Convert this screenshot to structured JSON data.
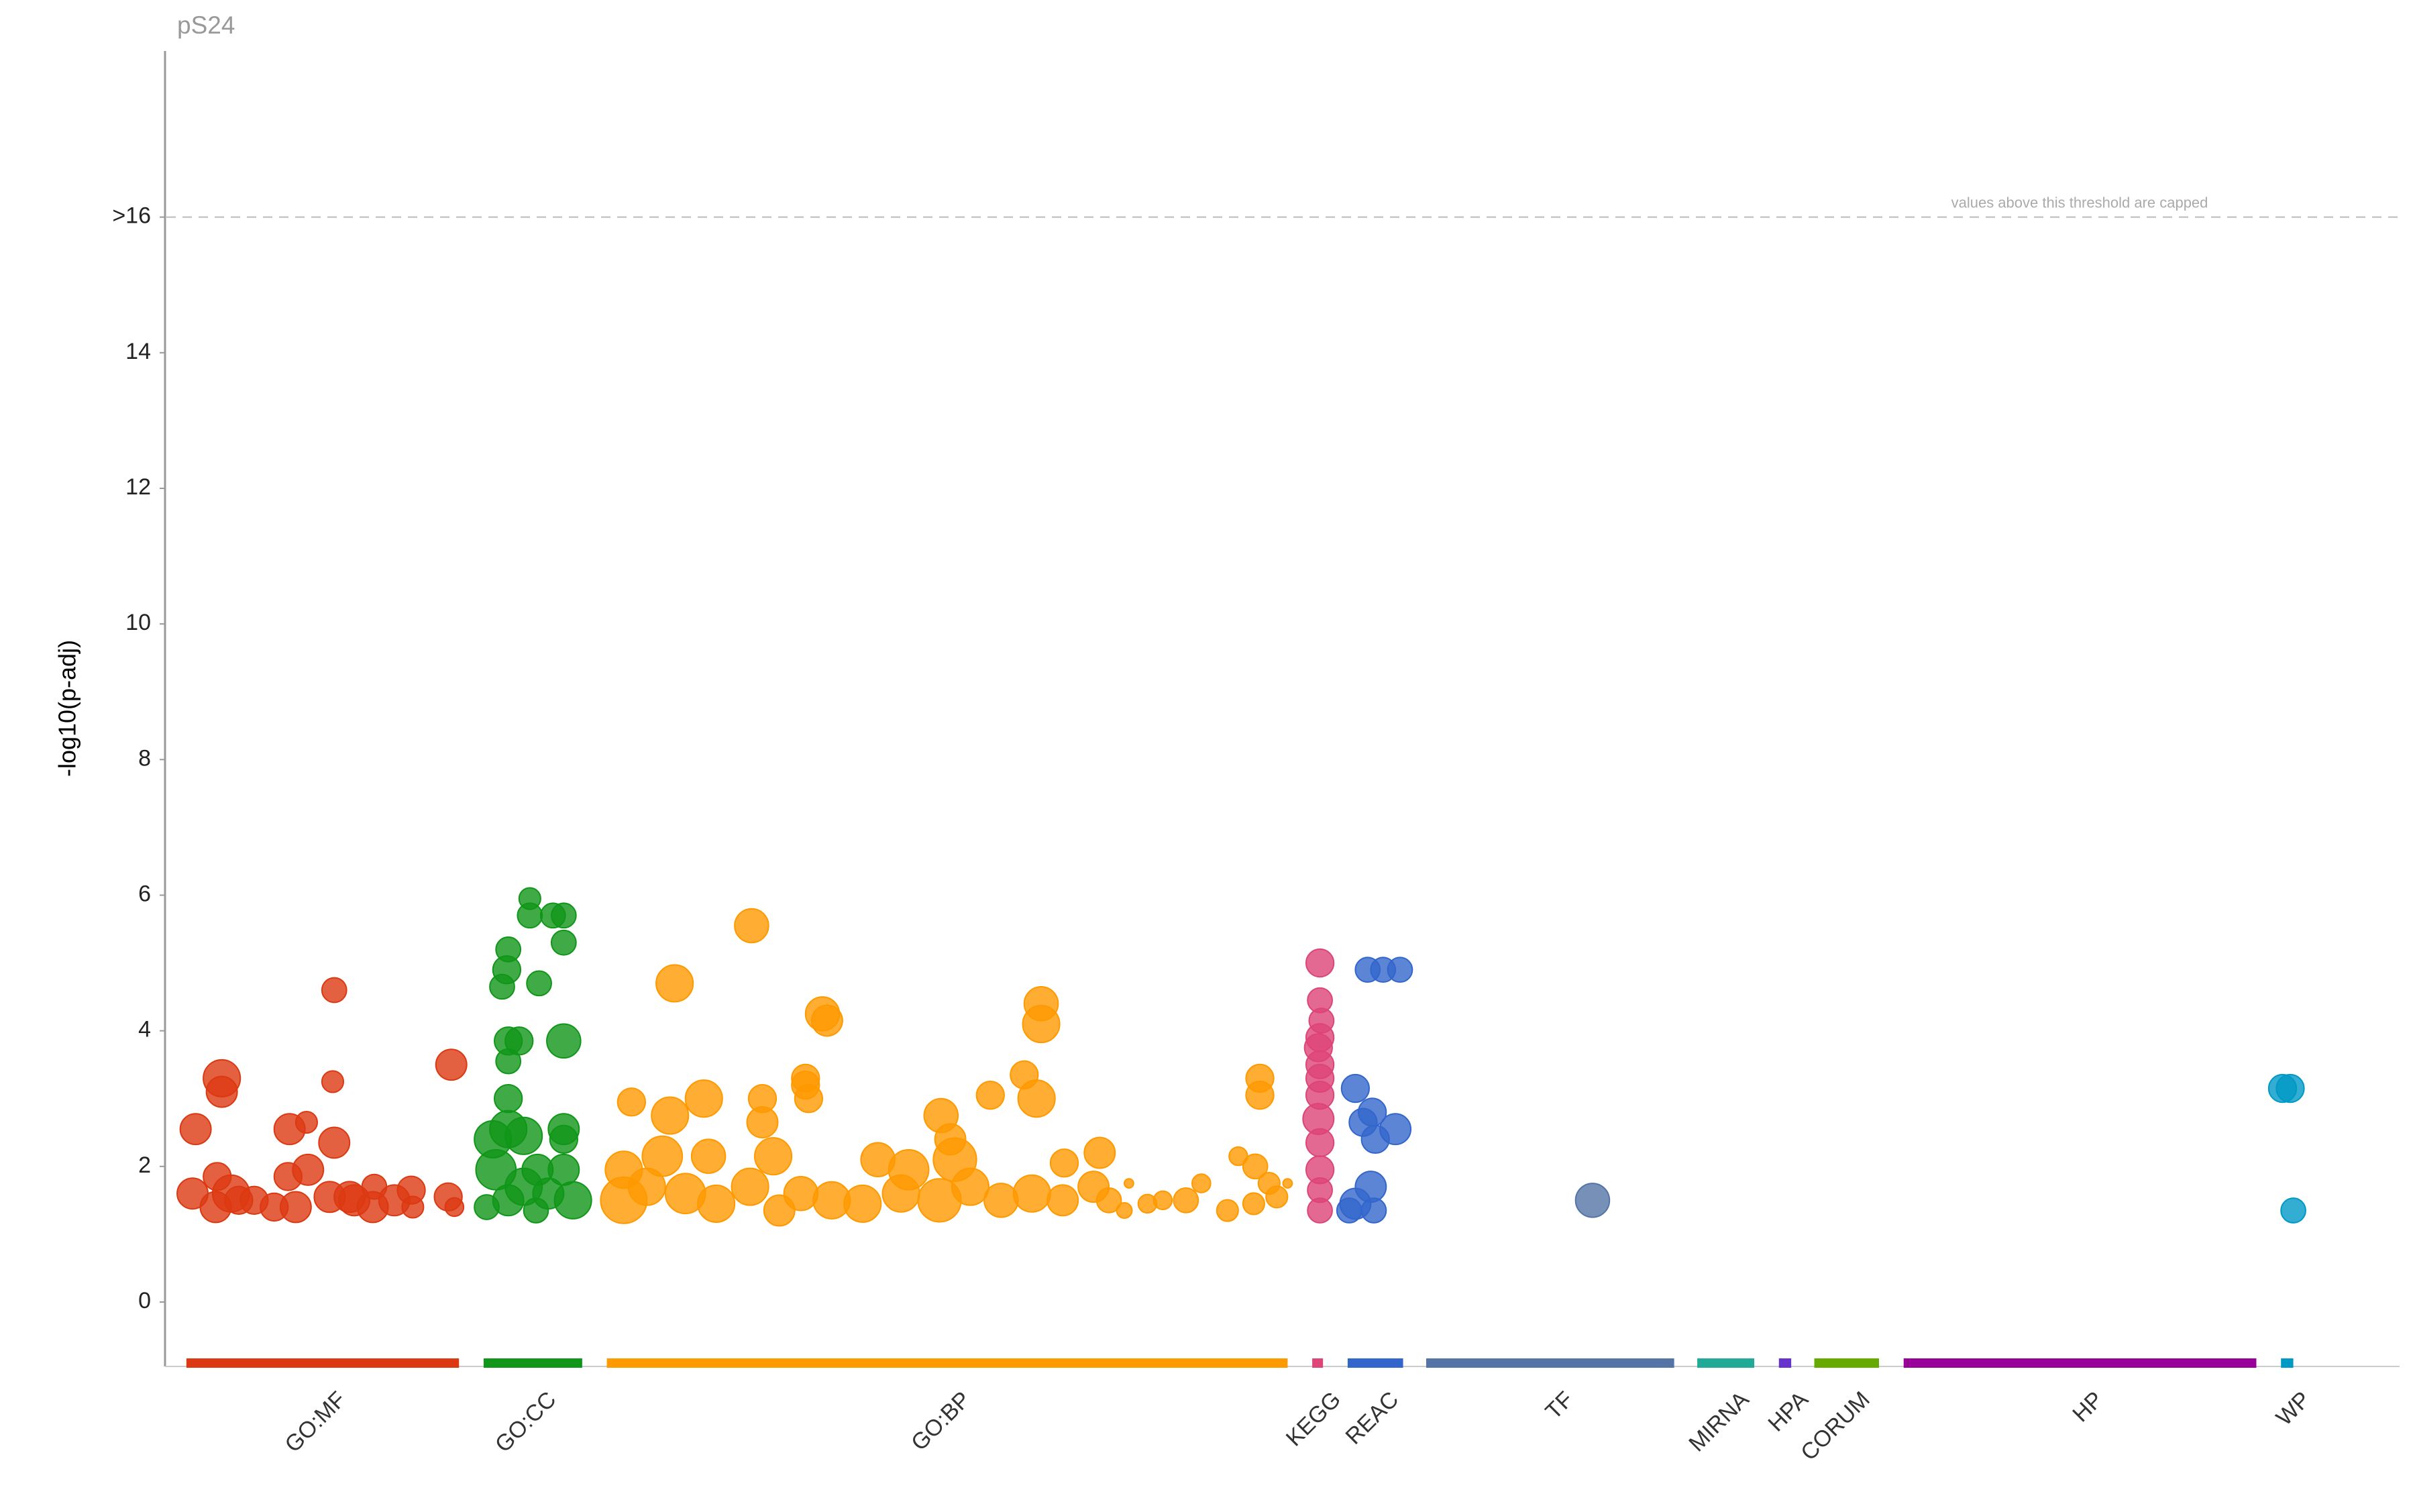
{
  "chart_data": {
    "type": "scatter",
    "title": "pS24",
    "y_label": "-log10(p-adj)",
    "annotation": "values above this threshold are capped",
    "threshold": 16,
    "xlim": [
      0,
      1450
    ],
    "ylim": [
      -0.95,
      18.45
    ],
    "yticks": [
      0,
      2,
      4,
      6,
      8,
      10,
      12,
      14,
      {
        "value": 16,
        "label": ">16"
      }
    ],
    "series": [
      {
        "name": "GO:MF",
        "color": "#dc3912",
        "start": 13,
        "end": 190,
        "x": [
          19,
          36,
          36,
          17,
          33,
          42,
          32,
          57,
          70,
          80,
          91,
          92,
          79,
          84,
          109,
          108,
          109,
          106,
          119,
          134,
          135,
          148,
          159,
          160,
          185,
          183,
          187,
          47,
          122
        ],
        "values": [
          2.55,
          3.3,
          3.1,
          1.6,
          1.85,
          1.6,
          1.4,
          1.5,
          1.4,
          2.55,
          2.65,
          1.95,
          1.85,
          1.4,
          4.6,
          3.25,
          2.35,
          1.55,
          1.55,
          1.4,
          1.7,
          1.5,
          1.65,
          1.4,
          3.5,
          1.55,
          1.4,
          1.5,
          1.5
        ],
        "sizes": [
          10,
          12,
          10,
          10,
          9,
          12,
          10,
          9,
          9,
          10,
          7,
          10,
          9,
          10,
          8,
          7,
          10,
          10,
          10,
          10,
          8,
          10,
          9,
          7,
          10,
          9,
          6,
          9,
          10
        ]
      },
      {
        "name": "GO:CC",
        "color": "#109618",
        "start": 206,
        "end": 270,
        "x": [
          236,
          236,
          251,
          258,
          222,
          258,
          221,
          218,
          242,
          222,
          229,
          258,
          222,
          222,
          222,
          212,
          214,
          232,
          258,
          258,
          241,
          258,
          208,
          222,
          240,
          264,
          232,
          248
        ],
        "values": [
          5.95,
          5.7,
          5.7,
          5.7,
          5.2,
          5.3,
          4.9,
          4.65,
          4.7,
          3.85,
          3.85,
          3.85,
          3.55,
          3.0,
          2.55,
          2.4,
          1.95,
          2.45,
          2.55,
          2.4,
          1.95,
          1.95,
          1.4,
          1.5,
          1.35,
          1.5,
          1.7,
          1.6
        ],
        "sizes": [
          7,
          8,
          8,
          8,
          8,
          8,
          9,
          8,
          8,
          9,
          9,
          11,
          8,
          9,
          12,
          12,
          13,
          12,
          10,
          9,
          10,
          10,
          8,
          10,
          8,
          12,
          12,
          10
        ]
      },
      {
        "name": "GO:BP",
        "color": "#ff9900",
        "start": 286,
        "end": 728,
        "x": [
          380,
          330,
          426,
          429,
          568,
          568,
          349,
          302,
          327,
          415,
          415,
          387,
          417,
          387,
          557,
          535,
          565,
          503,
          509,
          606,
          583,
          297,
          322,
          352,
          394,
          462,
          512,
          482,
          297,
          312,
          337,
          357,
          379,
          398,
          412,
          432,
          452,
          477,
          502,
          522,
          542,
          562,
          582,
          602,
          612,
          625,
          647,
          662,
          672,
          689,
          696,
          707,
          716,
          721,
          710,
          710,
          706,
          728,
          637,
          622
        ],
        "values": [
          5.55,
          4.7,
          4.25,
          4.15,
          4.4,
          4.1,
          3.0,
          2.95,
          2.75,
          3.3,
          3.2,
          3.0,
          3.0,
          2.65,
          3.35,
          3.05,
          3.0,
          2.75,
          2.4,
          2.2,
          2.05,
          1.95,
          2.15,
          2.15,
          2.15,
          2.1,
          2.1,
          1.95,
          1.5,
          1.7,
          1.6,
          1.45,
          1.7,
          1.35,
          1.6,
          1.5,
          1.45,
          1.6,
          1.5,
          1.7,
          1.5,
          1.6,
          1.5,
          1.7,
          1.5,
          1.75,
          1.5,
          1.5,
          1.75,
          1.35,
          2.15,
          2.0,
          1.75,
          1.55,
          3.05,
          3.3,
          1.45,
          1.75,
          1.45,
          1.35
        ],
        "sizes": [
          11,
          12,
          11,
          10,
          11,
          12,
          12,
          9,
          12,
          9,
          9,
          9,
          9,
          10,
          9,
          9,
          12,
          11,
          10,
          10,
          9,
          12,
          13,
          11,
          12,
          11,
          14,
          13,
          15,
          12,
          13,
          12,
          12,
          10,
          11,
          12,
          12,
          12,
          14,
          12,
          11,
          12,
          10,
          10,
          8,
          3,
          6,
          8,
          6,
          7,
          6,
          8,
          7,
          7,
          9,
          9,
          7,
          3,
          6,
          5
        ]
      },
      {
        "name": "KEGG",
        "color": "#dd4477",
        "start": 744,
        "end": 751,
        "x": [
          749,
          749,
          750,
          749,
          748,
          749,
          749,
          749,
          748,
          749,
          749,
          749,
          749
        ],
        "values": [
          5.0,
          4.45,
          4.15,
          3.9,
          3.75,
          3.5,
          3.3,
          3.05,
          2.7,
          2.35,
          1.95,
          1.65,
          1.35
        ],
        "sizes": [
          9,
          8,
          8,
          9,
          9,
          9,
          9,
          9,
          10,
          9,
          9,
          8,
          8
        ]
      },
      {
        "name": "REAC",
        "color": "#3366cc",
        "start": 767,
        "end": 803,
        "x": [
          772,
          780,
          790,
          801,
          777,
          783,
          785,
          798,
          782,
          772,
          768,
          784
        ],
        "values": [
          3.15,
          4.9,
          4.9,
          4.9,
          2.65,
          2.8,
          2.4,
          2.55,
          1.7,
          1.45,
          1.35,
          1.35
        ],
        "sizes": [
          9,
          8,
          8,
          8,
          9,
          9,
          9,
          10,
          10,
          10,
          8,
          8
        ]
      },
      {
        "name": "TF",
        "color": "#5574a6",
        "start": 818,
        "end": 979,
        "x": [
          926
        ],
        "values": [
          1.5
        ],
        "sizes": [
          11
        ]
      },
      {
        "name": "MIRNA",
        "color": "#22aa99",
        "start": 994,
        "end": 1031,
        "x": [],
        "values": [],
        "sizes": []
      },
      {
        "name": "HPA",
        "color": "#6633cc",
        "start": 1047,
        "end": 1055,
        "x": [],
        "values": [],
        "sizes": []
      },
      {
        "name": "CORUM",
        "color": "#66aa00",
        "start": 1070,
        "end": 1112,
        "x": [],
        "values": [],
        "sizes": []
      },
      {
        "name": "HP",
        "color": "#990099",
        "start": 1128,
        "end": 1357,
        "x": [],
        "values": [],
        "sizes": []
      },
      {
        "name": "WP",
        "color": "#0099c6",
        "start": 1373,
        "end": 1381,
        "x": [
          1374,
          1379,
          1381
        ],
        "values": [
          3.15,
          3.15,
          1.35
        ],
        "sizes": [
          9,
          9,
          8
        ]
      }
    ]
  }
}
